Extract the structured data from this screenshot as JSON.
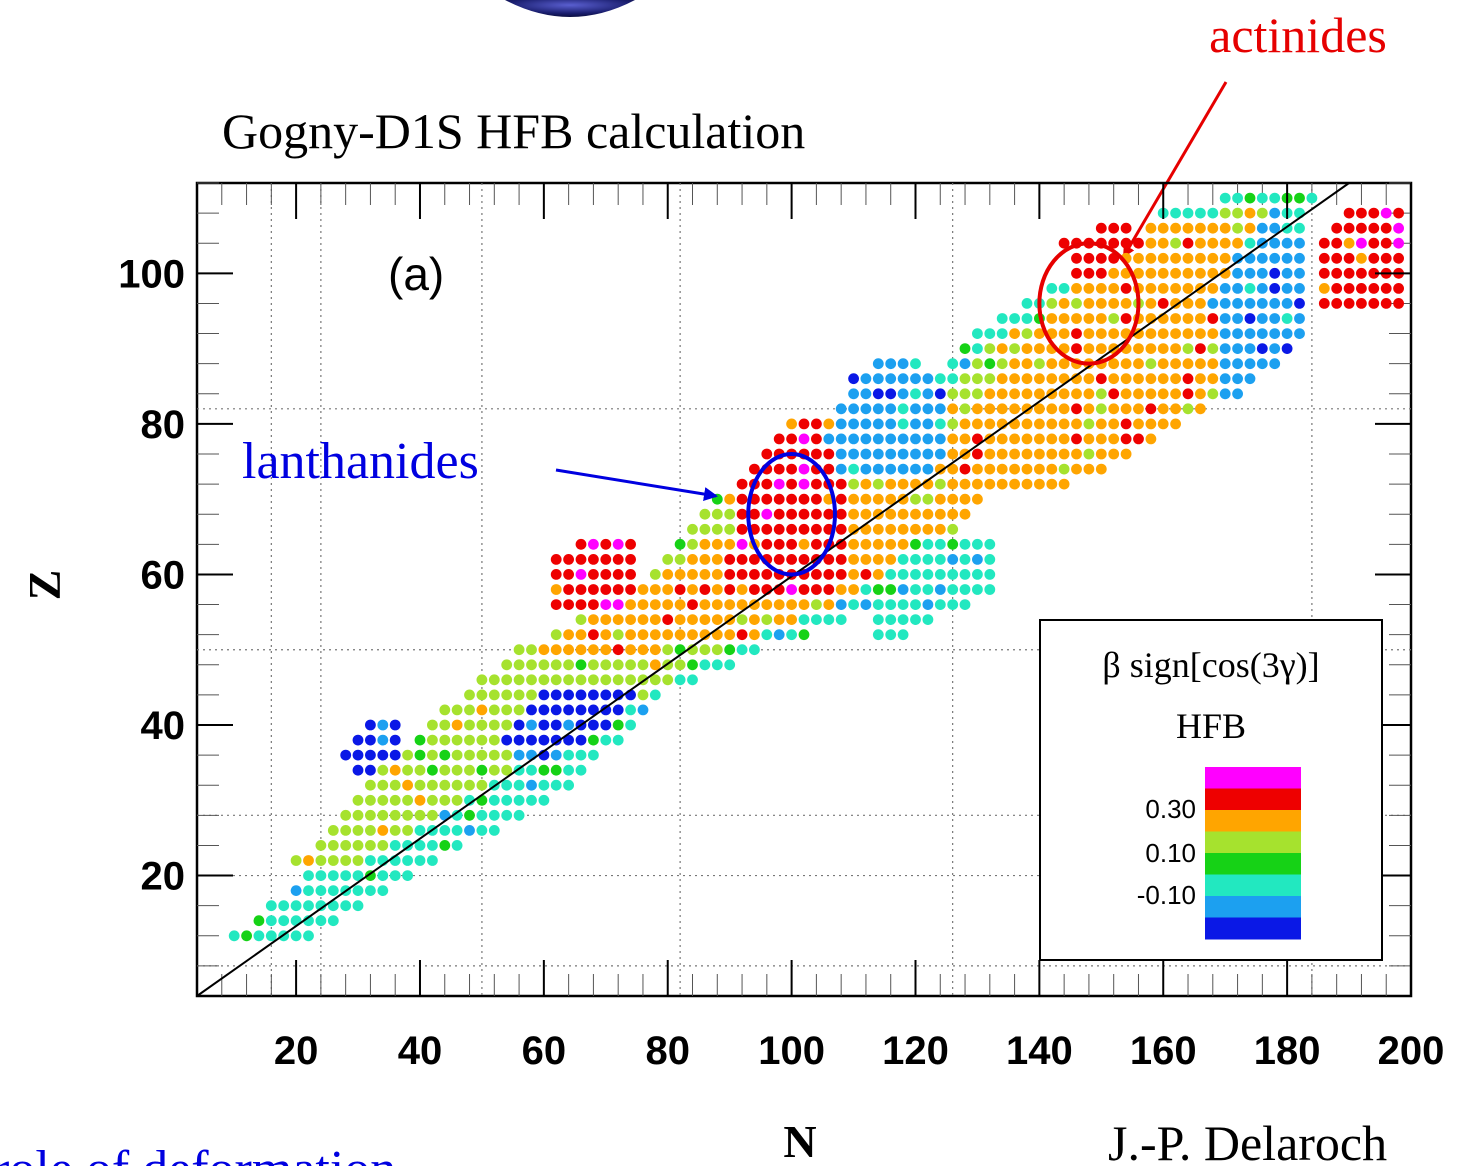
{
  "header": {
    "title": "Gogny-D1S HFB calculation"
  },
  "annotations": {
    "actinides": "actinides",
    "lanthanides": "lanthanides",
    "panel": "(a)"
  },
  "footer": {
    "left_text": "role of deformation",
    "right_text": "J.-P. Delaroch"
  },
  "legend": {
    "title": "β sign[cos(3γ)]",
    "subtitle": "HFB",
    "tick_labels": [
      "0.30",
      "0.10",
      "-0.10"
    ],
    "colors": [
      "#ff00ff",
      "#ee0000",
      "#ffa500",
      "#a6e22e",
      "#16d216",
      "#22e8c0",
      "#1ca0f0",
      "#0a18e6"
    ]
  },
  "chart_data": {
    "type": "scatter",
    "xlabel": "N",
    "ylabel": "Z",
    "xlim": [
      4,
      200
    ],
    "ylim": [
      4,
      112
    ],
    "x_ticks": [
      20,
      40,
      60,
      80,
      100,
      120,
      140,
      160,
      180,
      200
    ],
    "y_ticks": [
      20,
      40,
      60,
      80,
      100
    ],
    "grid": "dotted lines at N = 16, 24, 50, 82, 126, 184 and Z = 8, 20, 28, 50, 82",
    "reference_line": {
      "x1": 4,
      "y1": 4,
      "x2": 190,
      "y2": 112
    },
    "color_scale": {
      "bin_edges": [
        -0.3,
        -0.2,
        -0.1,
        0.0,
        0.1,
        0.2,
        0.3,
        0.4,
        0.5
      ],
      "labeled_ticks": [
        0.3,
        0.1,
        -0.1
      ]
    },
    "point_grid_step": 2,
    "categories": [
      "magenta",
      "red",
      "orange",
      "light-green",
      "green",
      "turquoise",
      "light-blue",
      "blue"
    ],
    "regions": [
      {
        "polygon": [
          [
            10,
            12
          ],
          [
            40,
            34
          ],
          [
            66,
            44
          ],
          [
            86,
            56
          ],
          [
            104,
            72
          ],
          [
            130,
            92
          ],
          [
            160,
            108
          ],
          [
            180,
            112
          ],
          [
            186,
            112
          ],
          [
            180,
            102
          ],
          [
            172,
            96
          ],
          [
            156,
            88
          ],
          [
            136,
            76
          ],
          [
            126,
            64
          ],
          [
            116,
            56
          ],
          [
            96,
            50
          ],
          [
            80,
            44
          ],
          [
            62,
            30
          ],
          [
            48,
            24
          ],
          [
            32,
            16
          ],
          [
            22,
            11
          ]
        ],
        "value": -0.05
      },
      {
        "polygon": [
          [
            20,
            22
          ],
          [
            34,
            34
          ],
          [
            44,
            42
          ],
          [
            56,
            50
          ],
          [
            70,
            56
          ],
          [
            80,
            62
          ],
          [
            88,
            70
          ],
          [
            100,
            76
          ],
          [
            110,
            78
          ],
          [
            124,
            82
          ],
          [
            132,
            90
          ],
          [
            142,
            96
          ],
          [
            160,
            106
          ],
          [
            178,
            110
          ],
          [
            172,
            98
          ],
          [
            150,
            86
          ],
          [
            134,
            76
          ],
          [
            124,
            68
          ],
          [
            116,
            60
          ],
          [
            100,
            54
          ],
          [
            86,
            48
          ],
          [
            72,
            42
          ],
          [
            56,
            34
          ],
          [
            40,
            26
          ],
          [
            28,
            20
          ]
        ],
        "value": 0.15
      },
      {
        "polygon": [
          [
            60,
            50
          ],
          [
            72,
            56
          ],
          [
            86,
            64
          ],
          [
            100,
            68
          ],
          [
            116,
            72
          ],
          [
            124,
            76
          ],
          [
            132,
            84
          ],
          [
            142,
            94
          ],
          [
            158,
            106
          ],
          [
            180,
            108
          ],
          [
            180,
            100
          ],
          [
            170,
            90
          ],
          [
            152,
            84
          ],
          [
            136,
            74
          ],
          [
            124,
            64
          ],
          [
            112,
            58
          ],
          [
            96,
            52
          ],
          [
            80,
            50
          ]
        ],
        "value": 0.25
      },
      {
        "polygon": [
          [
            132,
            70
          ],
          [
            146,
            72
          ],
          [
            160,
            78
          ],
          [
            172,
            84
          ],
          [
            180,
            90
          ],
          [
            182,
            98
          ],
          [
            178,
            104
          ],
          [
            166,
            108
          ],
          [
            152,
            104
          ],
          [
            142,
            96
          ],
          [
            136,
            84
          ],
          [
            130,
            76
          ]
        ],
        "value": 0.25
      },
      {
        "polygon": [
          [
            94,
            58
          ],
          [
            108,
            58
          ],
          [
            110,
            66
          ],
          [
            108,
            80
          ],
          [
            100,
            82
          ],
          [
            92,
            72
          ],
          [
            90,
            62
          ]
        ],
        "value": 0.35
      },
      {
        "polygon": [
          [
            60,
            54
          ],
          [
            74,
            56
          ],
          [
            76,
            64
          ],
          [
            70,
            66
          ],
          [
            62,
            62
          ]
        ],
        "value": 0.35
      },
      {
        "polygon": [
          [
            146,
            98
          ],
          [
            158,
            104
          ],
          [
            154,
            108
          ],
          [
            144,
            104
          ]
        ],
        "value": 0.35
      },
      {
        "polygon": [
          [
            186,
            96
          ],
          [
            200,
            96
          ],
          [
            200,
            110
          ],
          [
            190,
            110
          ],
          [
            186,
            104
          ]
        ],
        "value": 0.35
      },
      {
        "polygon": [
          [
            56,
            34
          ],
          [
            72,
            40
          ],
          [
            76,
            44
          ],
          [
            70,
            46
          ],
          [
            60,
            44
          ],
          [
            54,
            38
          ]
        ],
        "value": -0.25
      },
      {
        "polygon": [
          [
            30,
            32
          ],
          [
            38,
            36
          ],
          [
            38,
            42
          ],
          [
            32,
            40
          ],
          [
            28,
            36
          ]
        ],
        "value": -0.25
      },
      {
        "polygon": [
          [
            108,
            72
          ],
          [
            124,
            74
          ],
          [
            126,
            84
          ],
          [
            118,
            90
          ],
          [
            110,
            86
          ],
          [
            106,
            78
          ]
        ],
        "value": -0.15
      },
      {
        "polygon": [
          [
            170,
            82
          ],
          [
            182,
            90
          ],
          [
            184,
            104
          ],
          [
            176,
            108
          ],
          [
            168,
            96
          ]
        ],
        "value": -0.15
      },
      {
        "polygon": [
          [
            114,
            50
          ],
          [
            134,
            58
          ],
          [
            132,
            66
          ],
          [
            120,
            66
          ],
          [
            112,
            56
          ]
        ],
        "value": -0.05
      }
    ],
    "overlays": {
      "lanthanides_circle": {
        "cx": 100,
        "cy": 68,
        "rx": 7,
        "ry": 8
      },
      "actinides_circle": {
        "cx": 148,
        "cy": 96,
        "rx": 8,
        "ry": 8
      }
    }
  }
}
